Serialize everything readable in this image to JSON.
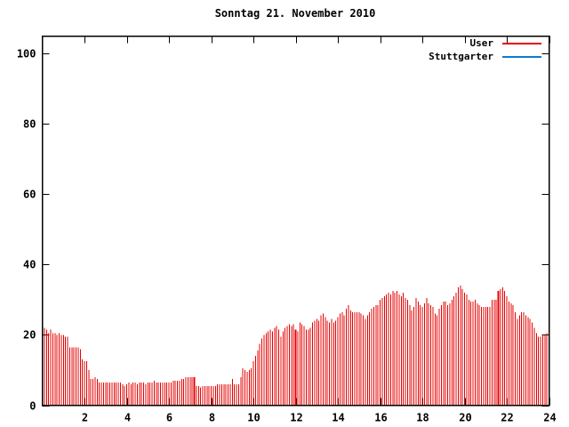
{
  "title": "Sonntag 21. November 2010",
  "legend": {
    "items": [
      {
        "label": "User",
        "color": "#e60000"
      },
      {
        "label": "Stuttgarter",
        "color": "#0c7cd5"
      }
    ],
    "position": "top-right-inside"
  },
  "axes": {
    "x_ticks": [
      2,
      4,
      6,
      8,
      10,
      12,
      14,
      16,
      18,
      20,
      22,
      24
    ],
    "y_ticks": [
      0,
      20,
      40,
      60,
      80,
      100
    ],
    "x_range": [
      0,
      24
    ],
    "y_range": [
      0,
      105
    ],
    "grid": false,
    "mirror_ticks": true
  },
  "chart_data": {
    "type": "bar",
    "title": "Sonntag 21. November 2010",
    "xlabel": "",
    "ylabel": "",
    "xlim": [
      0,
      24
    ],
    "ylim": [
      0,
      105
    ],
    "x_start": 0.1,
    "x_step": 0.1,
    "wide_bar_hours": [
      7.2,
      12.0,
      21.6
    ],
    "series": [
      {
        "name": "User",
        "color": "#e60000",
        "values": [
          22,
          21.5,
          20.5,
          21.5,
          20.5,
          20.5,
          20,
          20.5,
          20,
          20,
          19.5,
          19.5,
          16.5,
          16.5,
          16.5,
          16.5,
          16.5,
          16,
          13,
          12.5,
          12.5,
          10,
          7.5,
          7.5,
          8,
          7.5,
          6.5,
          6.5,
          6.5,
          6.5,
          6.5,
          6.5,
          6.5,
          6.5,
          6.5,
          6.5,
          6.5,
          6,
          5.5,
          6,
          6.5,
          6,
          6.5,
          6.5,
          6,
          6.5,
          6.5,
          6.5,
          6,
          6.5,
          6.5,
          6.5,
          7,
          6.5,
          6.5,
          6.5,
          6.5,
          6.5,
          6.5,
          6.5,
          6.5,
          7,
          7,
          7,
          7,
          7.5,
          7.5,
          8,
          8,
          8,
          8,
          8,
          5.5,
          5.5,
          5,
          5.5,
          5.5,
          5.5,
          5.5,
          5.5,
          5.5,
          5.5,
          6,
          6,
          6,
          6,
          6,
          6,
          6,
          7.5,
          6,
          6,
          6,
          8,
          10.5,
          10,
          9.5,
          10,
          10.5,
          12.5,
          14,
          15.5,
          17.5,
          19,
          20,
          20.5,
          21,
          21.5,
          21,
          22,
          22.5,
          21.5,
          19.5,
          21,
          22,
          22.5,
          23,
          22.5,
          23,
          21.5,
          21,
          23.5,
          23,
          22.5,
          21.5,
          21.5,
          22,
          23.5,
          24,
          24.5,
          24,
          25.5,
          26,
          25,
          24,
          23.5,
          24.5,
          23.5,
          24,
          25,
          26,
          26.5,
          25.5,
          27.5,
          28.5,
          27,
          26.5,
          26.5,
          26.5,
          26.5,
          26,
          25.5,
          24.5,
          25.5,
          26.5,
          27.5,
          28,
          28.5,
          28.5,
          30,
          30.5,
          31,
          31.5,
          32,
          31.5,
          32.5,
          32,
          32.5,
          31.5,
          31,
          32,
          30.5,
          30,
          28.5,
          27,
          28,
          30.5,
          29.5,
          28.5,
          28,
          29,
          30.5,
          29,
          28.5,
          28,
          26,
          25.5,
          27.5,
          28.5,
          29.5,
          29.5,
          28.5,
          29,
          30,
          31,
          32,
          33.5,
          34,
          33,
          32,
          31.5,
          30,
          29.5,
          29.5,
          30,
          29,
          28.5,
          28,
          28,
          28,
          28,
          28,
          30,
          30,
          30,
          32.5,
          33,
          33.5,
          32.5,
          31,
          29.5,
          29,
          28.5,
          26.5,
          24.5,
          25.5,
          26.5,
          26.5,
          25.5,
          25,
          24.5,
          23.5,
          22,
          20.5,
          19.5,
          19.5,
          20,
          20,
          20.5,
          21
        ]
      },
      {
        "name": "Stuttgarter",
        "color": "#0c7cd5",
        "values": []
      }
    ]
  }
}
